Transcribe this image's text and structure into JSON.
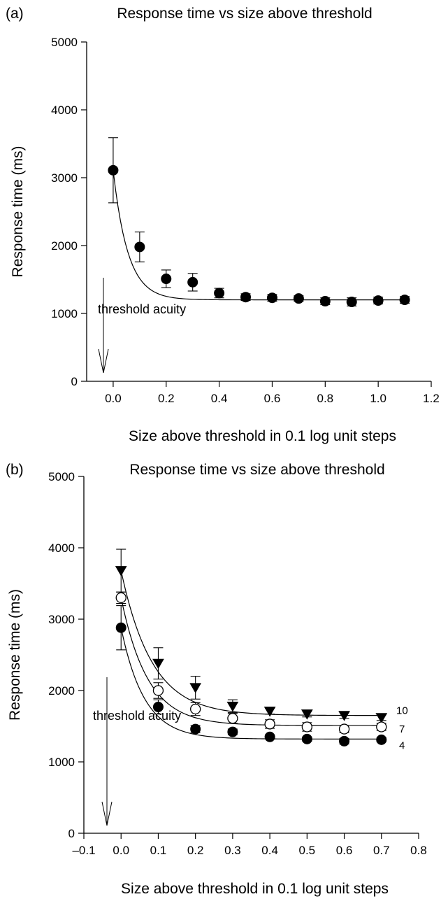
{
  "panels": [
    {
      "panel_label": "(a)",
      "annotation": "threshold acuity",
      "chart_data": {
        "type": "scatter",
        "title": "Response time vs size above threshold",
        "xlabel": "Size above threshold in 0.1 log unit steps",
        "ylabel": "Response time (ms)",
        "xlim": [
          -0.1,
          1.2
        ],
        "ylim": [
          0,
          5000
        ],
        "xticks": [
          0.0,
          0.2,
          0.4,
          0.6,
          0.8,
          1.0,
          1.2
        ],
        "xtick_labels": [
          "0.0",
          "0.2",
          "0.4",
          "0.6",
          "0.8",
          "1.0",
          "1.2"
        ],
        "yticks": [
          0,
          1000,
          2000,
          3000,
          4000,
          5000
        ],
        "ytick_labels": [
          "0",
          "1000",
          "2000",
          "3000",
          "4000",
          "5000"
        ],
        "grid": false,
        "series": [
          {
            "label": "",
            "marker": "filled-circle",
            "x": [
              0.0,
              0.1,
              0.2,
              0.3,
              0.4,
              0.5,
              0.6,
              0.7,
              0.8,
              0.9,
              1.0,
              1.1
            ],
            "y": [
              3110,
              1980,
              1510,
              1460,
              1300,
              1240,
              1230,
              1220,
              1180,
              1170,
              1190,
              1200
            ],
            "error": [
              480,
              220,
              130,
              130,
              70,
              50,
              50,
              40,
              50,
              60,
              50,
              50
            ],
            "fit": {
              "plateau": 1200,
              "amplitude": 1910,
              "rate": 18
            }
          }
        ]
      }
    },
    {
      "panel_label": "(b)",
      "annotation": "threshold acuity",
      "chart_data": {
        "type": "scatter",
        "title": "Response time vs size above threshold",
        "xlabel": "Size above threshold in 0.1 log unit steps",
        "ylabel": "Response time (ms)",
        "xlim": [
          -0.1,
          0.8
        ],
        "ylim": [
          0,
          5000
        ],
        "xticks": [
          -0.1,
          0.0,
          0.1,
          0.2,
          0.3,
          0.4,
          0.5,
          0.6,
          0.7,
          0.8
        ],
        "xtick_labels": [
          "–0.1",
          "0.0",
          "0.1",
          "0.2",
          "0.3",
          "0.4",
          "0.5",
          "0.6",
          "0.7",
          "0.8"
        ],
        "yticks": [
          0,
          1000,
          2000,
          3000,
          4000,
          5000
        ],
        "ytick_labels": [
          "0",
          "1000",
          "2000",
          "3000",
          "4000",
          "5000"
        ],
        "grid": false,
        "series": [
          {
            "label": "10",
            "marker": "filled-triangle-down",
            "x": [
              0.0,
              0.1,
              0.2,
              0.3,
              0.4,
              0.5,
              0.6,
              0.7
            ],
            "y": [
              3680,
              2380,
              2040,
              1780,
              1710,
              1670,
              1650,
              1620
            ],
            "error": [
              300,
              220,
              160,
              90,
              40,
              40,
              40,
              40
            ],
            "fit": {
              "plateau": 1650,
              "amplitude": 2030,
              "rate": 12
            }
          },
          {
            "label": "7",
            "marker": "open-circle",
            "x": [
              0.0,
              0.1,
              0.2,
              0.3,
              0.4,
              0.5,
              0.6,
              0.7
            ],
            "y": [
              3300,
              2000,
              1740,
              1610,
              1530,
              1490,
              1460,
              1490
            ],
            "error": [
              80,
              110,
              90,
              70,
              60,
              60,
              50,
              50
            ],
            "fit": {
              "plateau": 1510,
              "amplitude": 1790,
              "rate": 14
            }
          },
          {
            "label": "4",
            "marker": "filled-circle",
            "x": [
              0.0,
              0.1,
              0.2,
              0.3,
              0.4,
              0.5,
              0.6,
              0.7
            ],
            "y": [
              2880,
              1770,
              1460,
              1420,
              1350,
              1320,
              1290,
              1310
            ],
            "error": [
              310,
              100,
              50,
              40,
              30,
              30,
              40,
              30
            ],
            "fit": {
              "plateau": 1320,
              "amplitude": 1560,
              "rate": 16
            }
          }
        ]
      }
    }
  ]
}
